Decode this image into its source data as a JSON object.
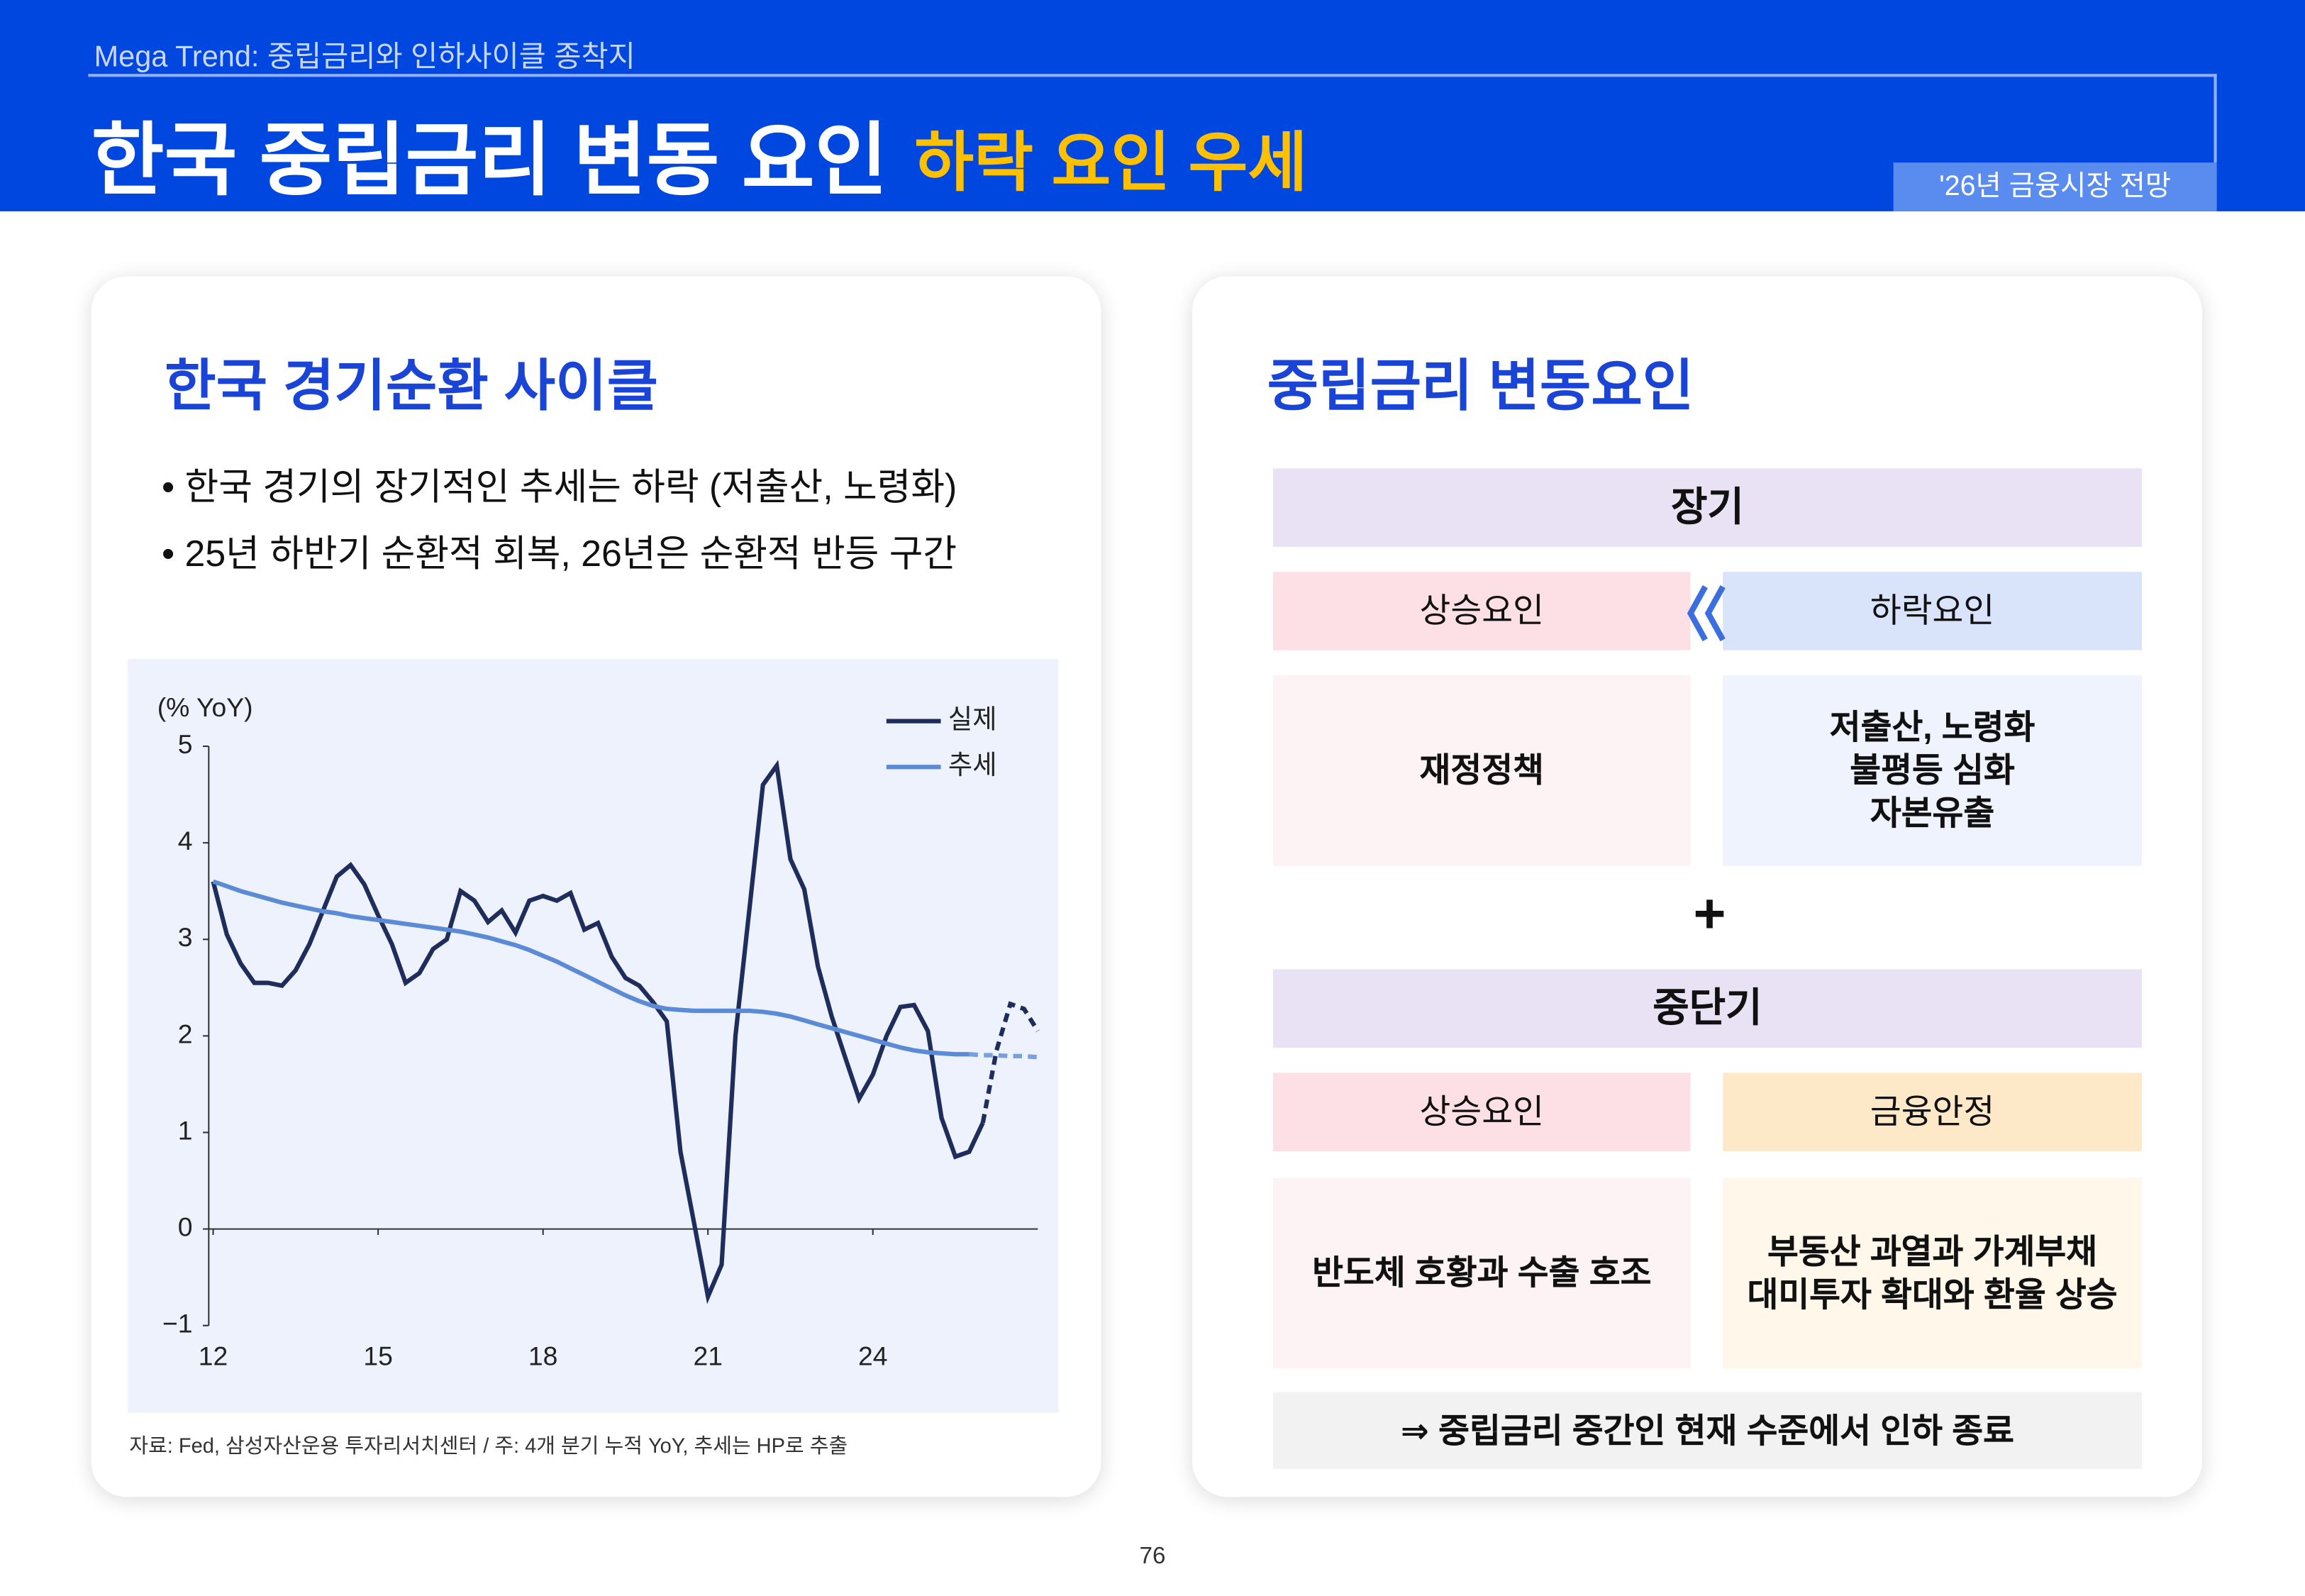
{
  "header": {
    "subtitle": "Mega Trend: 중립금리와 인하사이클 종착지",
    "title": "한국 중립금리 변동 요인",
    "highlight": "하락 요인 우세",
    "tag": "'26년 금융시장 전망"
  },
  "left_panel": {
    "title": "한국 경기순환 사이클",
    "bullets": [
      "• 한국 경기의 장기적인 추세는 하락 (저출산, 노령화)",
      "• 25년 하반기 순환적 회복, 26년은 순환적 반등 구간"
    ],
    "source": "자료: Fed, 삼성자산운용 투자리서치센터 / 주: 4개 분기 누적 YoY, 추세는 HP로 추출"
  },
  "chart_data": {
    "type": "line",
    "y_label": "(% YoY)",
    "x": [
      12,
      12.25,
      12.5,
      12.75,
      13,
      13.25,
      13.5,
      13.75,
      14,
      14.25,
      14.5,
      14.75,
      15,
      15.25,
      15.5,
      15.75,
      16,
      16.25,
      16.5,
      16.75,
      17,
      17.25,
      17.5,
      17.75,
      18,
      18.25,
      18.5,
      18.75,
      19,
      19.25,
      19.5,
      19.75,
      20,
      20.25,
      20.5,
      20.75,
      21,
      21.25,
      21.5,
      21.75,
      22,
      22.25,
      22.5,
      22.75,
      23,
      23.25,
      23.5,
      23.75,
      24,
      24.25,
      24.5,
      24.75,
      25,
      25.25,
      25.5,
      25.75,
      26,
      26.25,
      26.5,
      26.75,
      27
    ],
    "series": [
      {
        "name": "실제",
        "color": "#1f2d5c",
        "values": [
          3.6,
          3.05,
          2.75,
          2.55,
          2.55,
          2.52,
          2.68,
          2.95,
          3.3,
          3.65,
          3.77,
          3.57,
          3.25,
          2.95,
          2.55,
          2.65,
          2.9,
          3.0,
          3.5,
          3.4,
          3.18,
          3.3,
          3.07,
          3.4,
          3.45,
          3.4,
          3.48,
          3.1,
          3.17,
          2.82,
          2.6,
          2.52,
          2.35,
          2.15,
          0.8,
          0.05,
          -0.7,
          -0.37,
          2.0,
          3.3,
          4.6,
          4.8,
          3.83,
          3.52,
          2.72,
          2.2,
          1.77,
          1.35,
          1.6,
          2.0,
          2.3,
          2.32,
          2.05,
          1.15,
          0.75,
          0.8,
          1.1,
          null,
          null,
          null,
          null
        ],
        "forecast": [
          null,
          null,
          null,
          null,
          null,
          null,
          null,
          null,
          null,
          null,
          null,
          null,
          null,
          null,
          null,
          null,
          null,
          null,
          null,
          null,
          null,
          null,
          null,
          null,
          null,
          null,
          null,
          null,
          null,
          null,
          null,
          null,
          null,
          null,
          null,
          null,
          null,
          null,
          null,
          null,
          null,
          null,
          null,
          null,
          null,
          null,
          null,
          null,
          null,
          null,
          null,
          null,
          null,
          null,
          null,
          null,
          1.1,
          1.85,
          2.33,
          2.28,
          2.05
        ]
      },
      {
        "name": "추세",
        "color": "#5b8bd6",
        "values": [
          3.6,
          3.55,
          3.5,
          3.46,
          3.42,
          3.38,
          3.35,
          3.32,
          3.29,
          3.27,
          3.24,
          3.22,
          3.2,
          3.18,
          3.16,
          3.14,
          3.12,
          3.1,
          3.08,
          3.05,
          3.02,
          2.98,
          2.94,
          2.89,
          2.83,
          2.77,
          2.7,
          2.63,
          2.56,
          2.49,
          2.42,
          2.36,
          2.31,
          2.28,
          2.27,
          2.26,
          2.26,
          2.26,
          2.26,
          2.26,
          2.25,
          2.23,
          2.2,
          2.16,
          2.12,
          2.08,
          2.04,
          2.0,
          1.96,
          1.92,
          1.88,
          1.85,
          1.83,
          1.82,
          1.81,
          1.81,
          null,
          null,
          null,
          null,
          null
        ],
        "forecast": [
          null,
          null,
          null,
          null,
          null,
          null,
          null,
          null,
          null,
          null,
          null,
          null,
          null,
          null,
          null,
          null,
          null,
          null,
          null,
          null,
          null,
          null,
          null,
          null,
          null,
          null,
          null,
          null,
          null,
          null,
          null,
          null,
          null,
          null,
          null,
          null,
          null,
          null,
          null,
          null,
          null,
          null,
          null,
          null,
          null,
          null,
          null,
          null,
          null,
          null,
          null,
          null,
          null,
          null,
          null,
          1.81,
          1.8,
          1.8,
          1.79,
          1.79,
          1.78
        ]
      }
    ],
    "xlim": [
      12,
      27
    ],
    "ylim": [
      -1,
      5
    ],
    "xticks": [
      12,
      15,
      18,
      21,
      24
    ],
    "yticks": [
      {
        "value": -1,
        "label": "−1"
      },
      0,
      1,
      2,
      3,
      4,
      5
    ]
  },
  "right_panel": {
    "title": "중립금리 변동요인",
    "long_term": {
      "header": "장기",
      "up_label": "상승요인",
      "down_label": "하락요인",
      "up_items": [
        "재정정책"
      ],
      "down_items": [
        "저출산, 노령화",
        "불평등 심화",
        "자본유출"
      ]
    },
    "plus": "+",
    "mid_term": {
      "header": "중단기",
      "up_label": "상승요인",
      "down_label": "금융안정",
      "up_items": [
        "반도체 호황과 수출 호조"
      ],
      "down_items": [
        "부동산 과열과 가계부채",
        "대미투자 확대와 환율 상승"
      ]
    },
    "conclusion": "⇒ 중립금리 중간인 현재 수준에서 인하 종료"
  },
  "page_number": "76"
}
